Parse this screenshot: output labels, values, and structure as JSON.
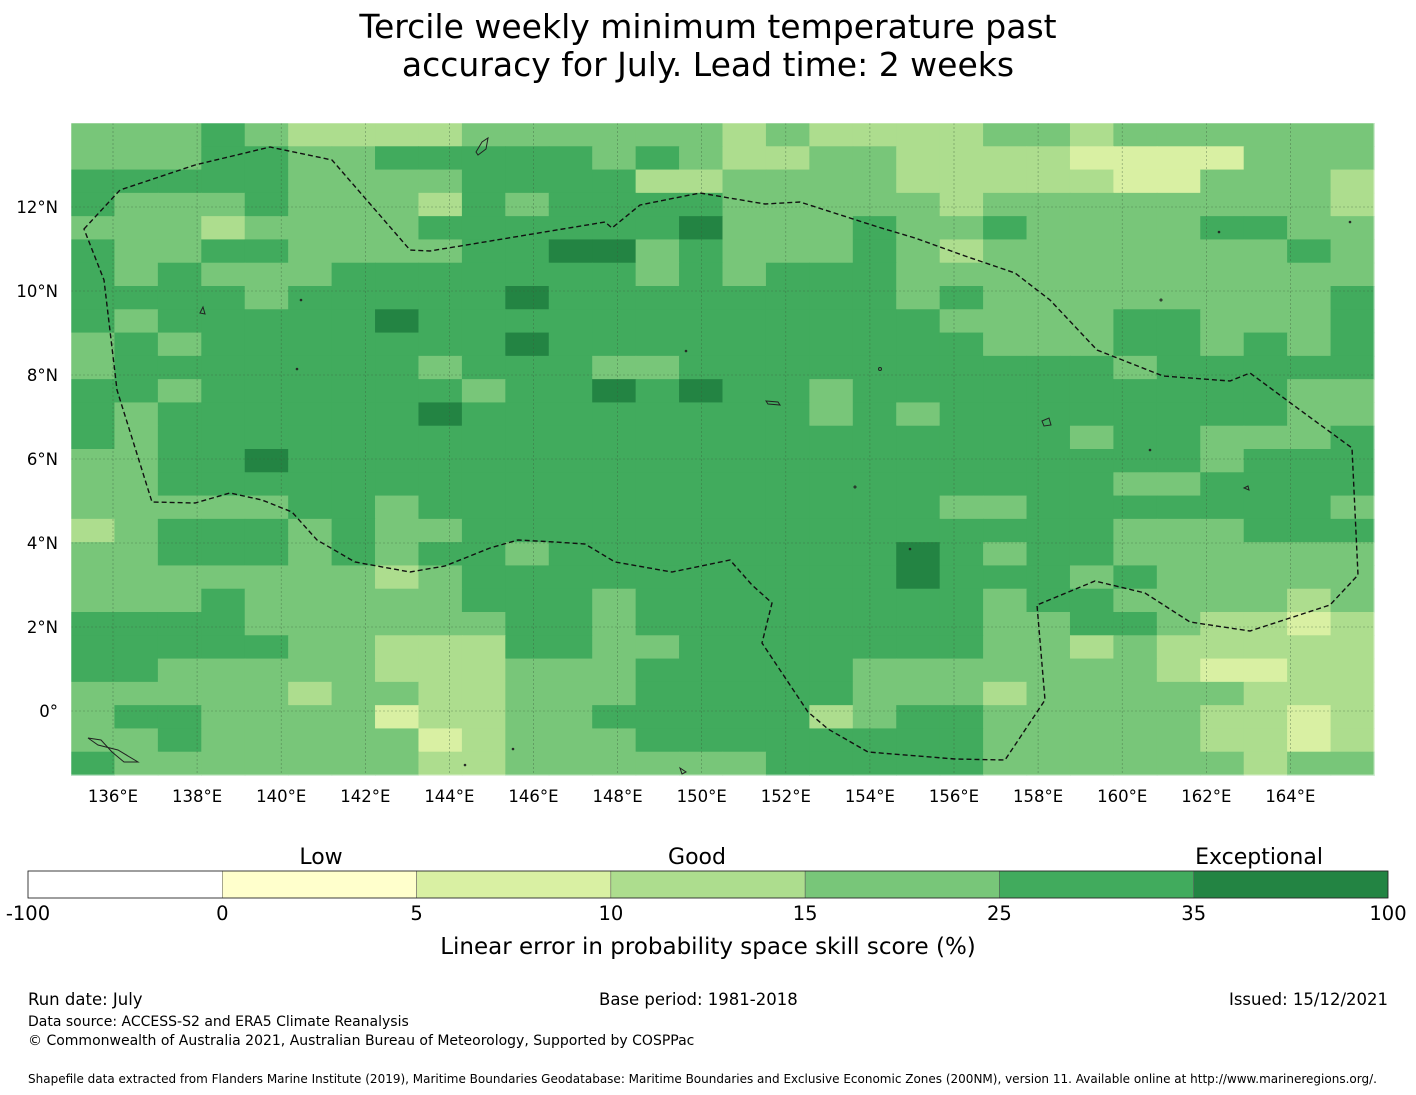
{
  "title": {
    "line1": "Tercile weekly minimum temperature past",
    "line2": "accuracy for July. Lead time: 2 weeks"
  },
  "map": {
    "lon_ticks": [
      "136°E",
      "138°E",
      "140°E",
      "142°E",
      "144°E",
      "146°E",
      "148°E",
      "150°E",
      "152°E",
      "154°E",
      "156°E",
      "158°E",
      "160°E",
      "162°E",
      "164°E"
    ],
    "lat_ticks": [
      "12°N",
      "10°N",
      "8°N",
      "6°N",
      "4°N",
      "2°N",
      "0°"
    ],
    "colors": [
      "#ffffff",
      "#ffffcc",
      "#d9f0a3",
      "#addd8e",
      "#78c679",
      "#41ab5d",
      "#238443"
    ],
    "cell_rows_north_to_south": [
      "444543333444444343333443444444",
      "444554455555454334433332222444",
      "555554444555533444433333224443",
      "544454443545555444443444444443",
      "444344445555556444544544445544",
      "544554444556645444543444444454",
      "545444555555545455544444444444",
      "555545555565555555545444444445",
      "545555565555555555554444554445",
      "454555555565555555555444554545",
      "455555554555445555555555455555",
      "554555555455656554555555555544",
      "545555556555555554545555555544",
      "545555555555555555555554554445",
      "445565555555555555555555554555",
      "445555555555555555555555445555",
      "444445545555555555554455555554",
      "345554544555555555555555444555",
      "445554545545555555565455444444",
      "444444434555555555565554544444",
      "444544444555455555555455444434",
      "555544444455455555555445543323",
      "555554433355445555555443433333",
      "554444433344455555444444432233",
      "444443443344455555444344444333",
      "455444423344555553455444443323",
      "445444442344455555555444443323",
      "544444443344444455555444444344"
    ]
  },
  "colorbar": {
    "category_labels": [
      "Low",
      "Good",
      "Exceptional"
    ],
    "tick_labels": [
      "-100",
      "0",
      "5",
      "10",
      "15",
      "25",
      "35",
      "100"
    ],
    "axis_label": "Linear error in probability space skill score (%)"
  },
  "footer": {
    "run_date": "Run date: July",
    "base_period": "Base period: 1981-2018",
    "issued": "Issued: 15/12/2021",
    "data_source": "Data source: ACCESS-S2 and ERA5 Climate Reanalysis",
    "copyright": "© Commonwealth of Australia 2021, Australian Bureau of Meteorology, Supported by COSPPac",
    "shapefile": "Shapefile data extracted from Flanders Marine Institute (2019), Maritime Boundaries Geodatabase: Maritime Boundaries and Exclusive Economic Zones (200NM), version 11. Available online at http://www.marineregions.org/."
  }
}
